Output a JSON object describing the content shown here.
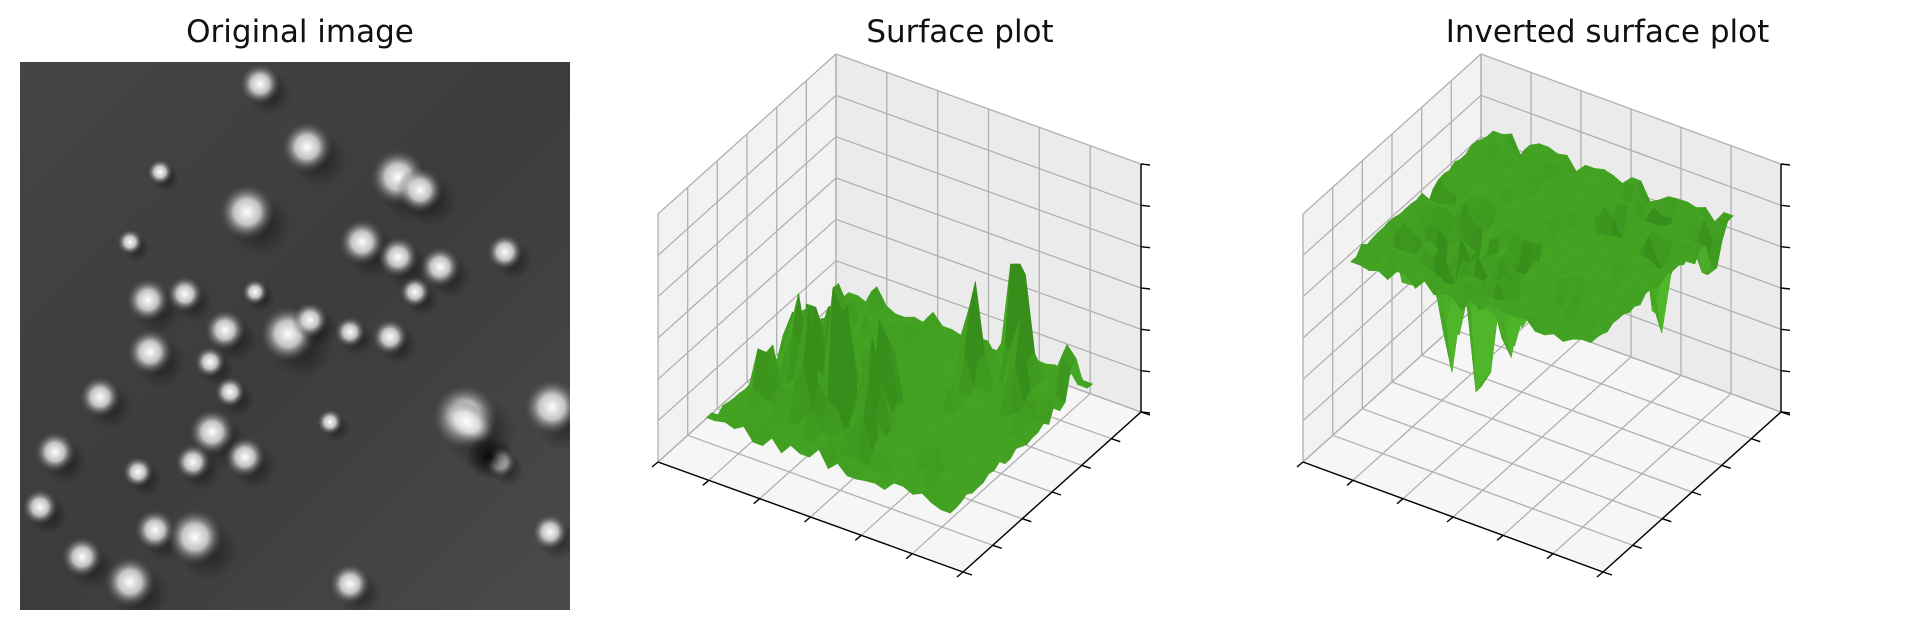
{
  "panels": [
    {
      "title": "Original image"
    },
    {
      "title": "Surface plot"
    },
    {
      "title": "Inverted surface plot"
    }
  ],
  "colors": {
    "surface_face": "#4fb62a",
    "surface_dark": "#2e7d15",
    "pane_back": "#f1f1f1",
    "pane_side": "#e6e6e6",
    "grid": "#b0b0b0",
    "axis": "#000000"
  },
  "chart_data": [
    {
      "type": "heatmap",
      "title": "Original image",
      "colormap": "gray",
      "grid": false,
      "axes_visible": false
    },
    {
      "type": "surface",
      "title": "Surface plot",
      "tick_labels_visible": false,
      "grid": true
    },
    {
      "type": "surface",
      "title": "Inverted surface plot",
      "inverted": true,
      "tick_labels_visible": false,
      "grid": true
    }
  ]
}
